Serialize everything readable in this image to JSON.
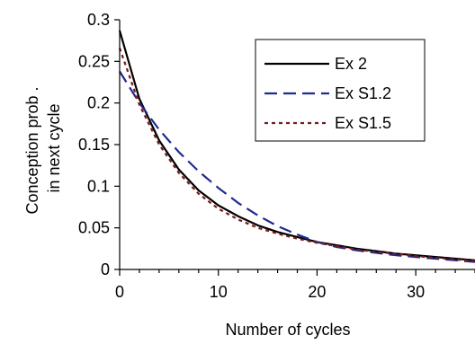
{
  "chart_data": {
    "type": "line",
    "xlabel": "Number of cycles",
    "ylabel": [
      "Conception prob .",
      "in next cycle"
    ],
    "xlim": [
      0,
      36
    ],
    "ylim": [
      0,
      0.3
    ],
    "x_ticks": [
      0,
      10,
      20,
      30
    ],
    "x_tick_labels": [
      "0",
      "10",
      "20",
      "30"
    ],
    "y_ticks": [
      0,
      0.05,
      0.1,
      0.15,
      0.2,
      0.25,
      0.3
    ],
    "y_tick_labels": [
      "0",
      "0.05",
      "0.1",
      "0.15",
      "0.2",
      "0.25",
      "0.3"
    ],
    "grid": false,
    "legend_position": "top-right",
    "x": [
      0,
      2,
      4,
      6,
      8,
      10,
      12,
      14,
      16,
      18,
      20,
      22,
      24,
      26,
      28,
      30,
      32,
      34,
      36
    ],
    "series": [
      {
        "name": "Ex 2",
        "color": "#000000",
        "style": "solid",
        "values": [
          0.287,
          0.205,
          0.155,
          0.12,
          0.095,
          0.077,
          0.064,
          0.053,
          0.045,
          0.039,
          0.033,
          0.029,
          0.025,
          0.022,
          0.019,
          0.017,
          0.015,
          0.013,
          0.011
        ]
      },
      {
        "name": "Ex S1.2",
        "color": "#1f2a8f",
        "style": "dashed",
        "values": [
          0.238,
          0.2,
          0.168,
          0.141,
          0.118,
          0.098,
          0.08,
          0.065,
          0.052,
          0.042,
          0.033,
          0.027,
          0.023,
          0.02,
          0.017,
          0.015,
          0.013,
          0.011,
          0.009
        ]
      },
      {
        "name": "Ex S1.5",
        "color": "#7a1a1a",
        "style": "dotted",
        "values": [
          0.266,
          0.198,
          0.15,
          0.116,
          0.091,
          0.073,
          0.06,
          0.05,
          0.043,
          0.037,
          0.032,
          0.028,
          0.024,
          0.021,
          0.019,
          0.016,
          0.014,
          0.012,
          0.01
        ]
      }
    ]
  }
}
